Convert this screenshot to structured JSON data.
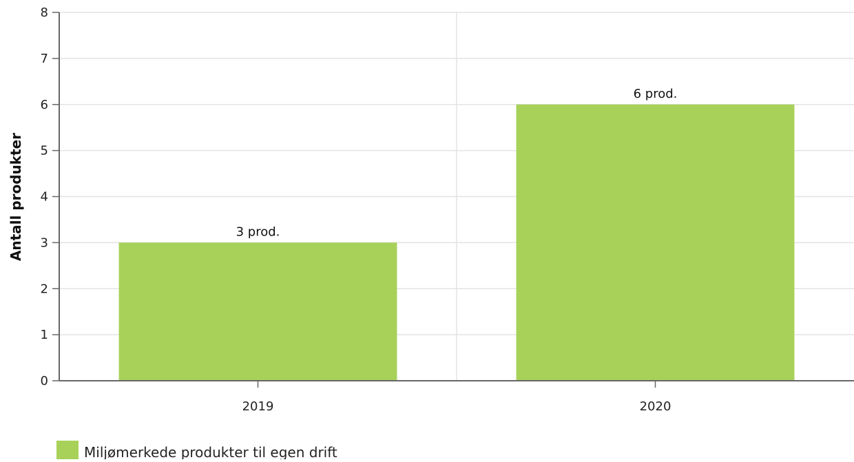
{
  "chart_data": {
    "type": "bar",
    "categories": [
      "2019",
      "2020"
    ],
    "series": [
      {
        "name": "Miljømerkede produkter til egen drift",
        "values": [
          3,
          6
        ],
        "data_labels": [
          "3 prod.",
          "6 prod."
        ]
      }
    ],
    "ylabel": "Antall produkter",
    "xlabel": "",
    "ylim": [
      0,
      8
    ],
    "yticks": [
      "0",
      "1",
      "2",
      "3",
      "4",
      "5",
      "6",
      "7",
      "8"
    ],
    "grid": true,
    "legend_position": "bottom-left"
  },
  "colors": {
    "bar": "#a8d15a",
    "grid": "#e3e3e3",
    "axis": "#666666"
  }
}
